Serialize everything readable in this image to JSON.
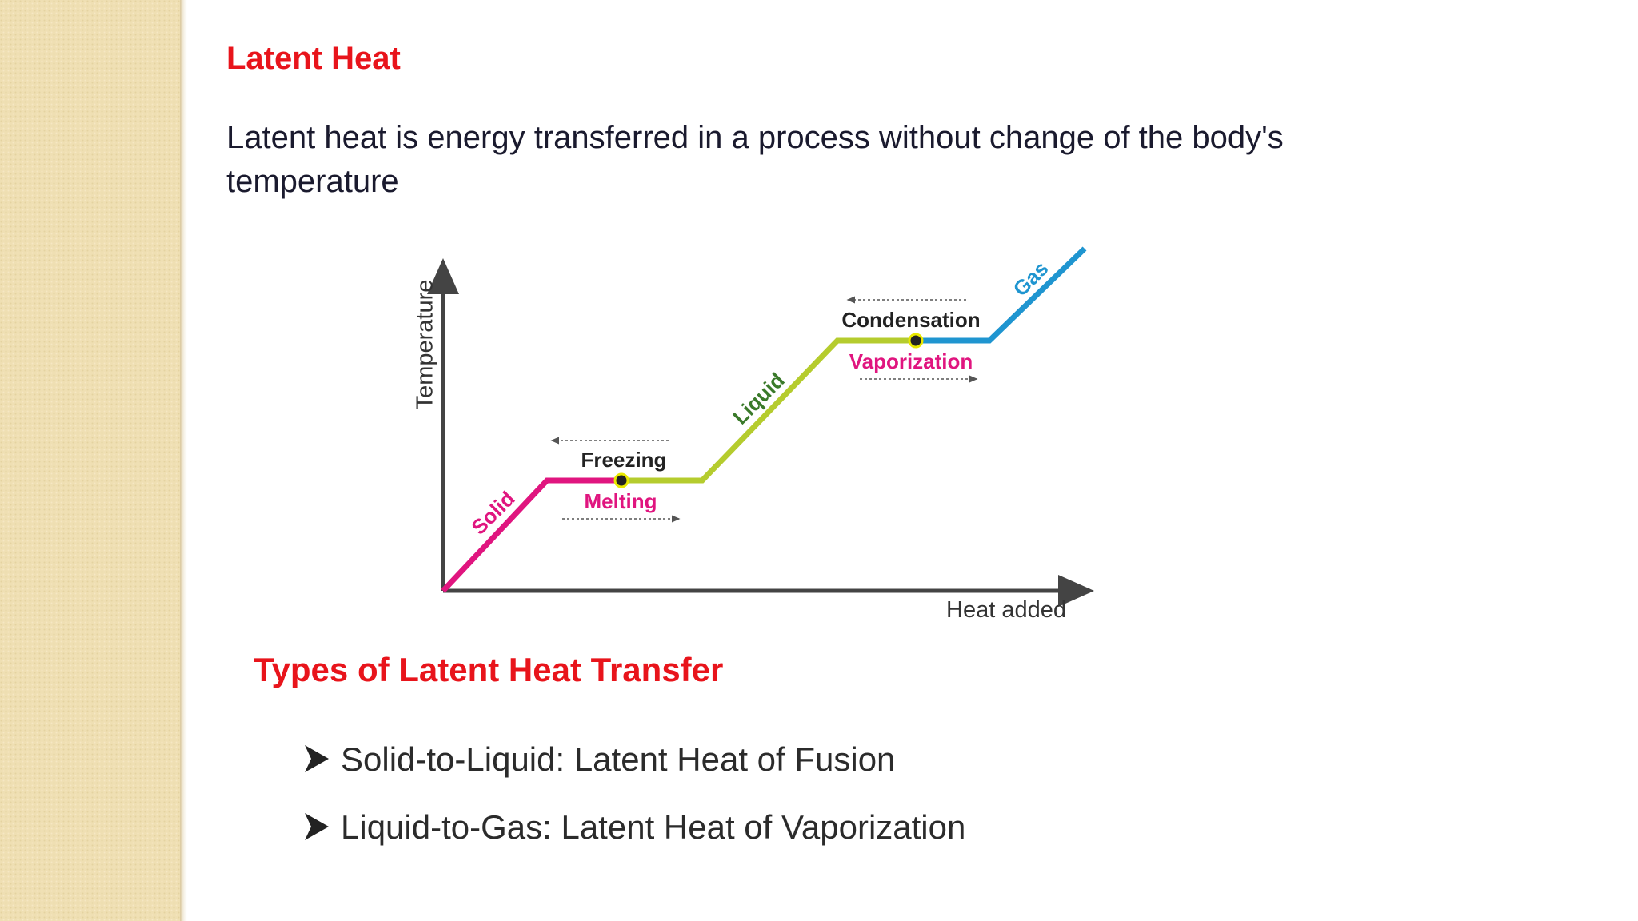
{
  "header": {
    "title": "Latent Heat"
  },
  "paragraph": [
    "Latent heat is energy transferred in a process without change of the body's",
    "temperature"
  ],
  "diagram": {
    "y_axis": "Temperature",
    "x_axis": "Heat added",
    "phases": [
      "Solid",
      "Liquid",
      "Gas"
    ],
    "transitions": {
      "freezing": "Freezing",
      "melting": "Melting",
      "condensation": "Condensation",
      "vaporization": "Vaporization"
    }
  },
  "section": {
    "title": "Types of Latent Heat Transfer",
    "bullets": [
      "Solid-to-Liquid: Latent Heat of Fusion",
      "Liquid-to-Gas: Latent Heat of Vaporization"
    ]
  }
}
